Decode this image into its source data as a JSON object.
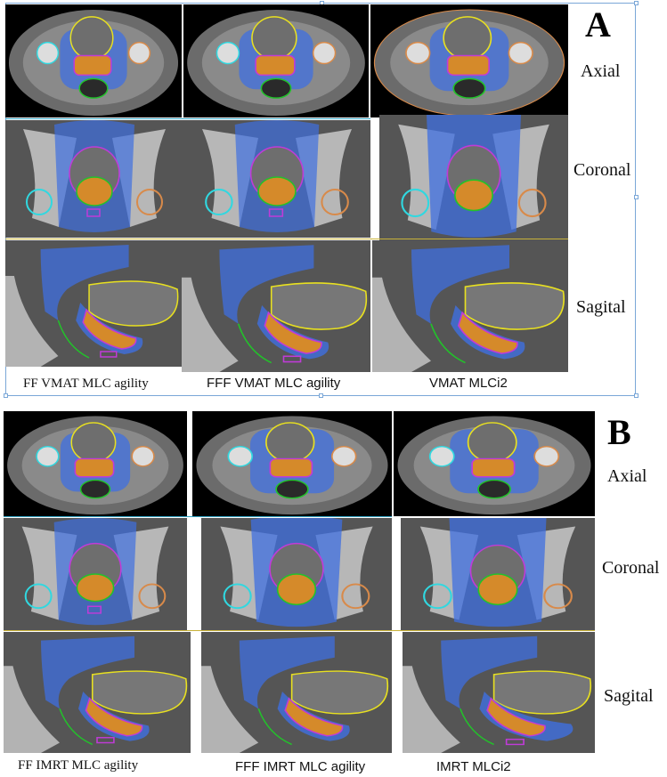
{
  "panel_a": {
    "letter": "A",
    "view_labels": {
      "axial": "Axial",
      "coronal": "Coronal",
      "sagittal": "Sagital"
    },
    "captions": [
      "FF VMAT MLC agility",
      "FFF VMAT MLC agility",
      "VMAT MLCi2"
    ]
  },
  "panel_b": {
    "letter": "B",
    "view_labels": {
      "axial": "Axial",
      "coronal": "Coronal",
      "sagittal": "Sagital"
    },
    "captions": [
      "FF IMRT MLC agility",
      "FFF IMRT MLC agility",
      "IMRT MLCi2"
    ]
  },
  "colors": {
    "background": "#000000",
    "dose_wash": "#3f6fe0",
    "bladder_contour": "#e8e020",
    "rectum_contour": "#22c22a",
    "ptv_contour": "#c03bd8",
    "ctv_contour": "#d89a2a",
    "femoral_head_left": "#30d8e0",
    "femoral_head_right": "#d88a4a",
    "separator_line": "#33a6c6",
    "frame_border": "#7aa7d8"
  }
}
